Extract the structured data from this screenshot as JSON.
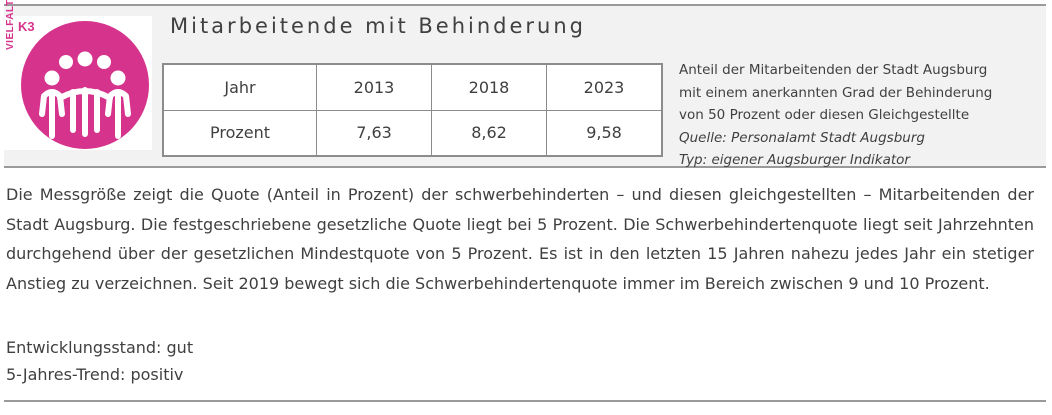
{
  "logo": {
    "side_text": "VIELFALT",
    "code": "K3",
    "accent_color": "#d6348c"
  },
  "title": "Mitarbeitende mit Behinderung",
  "table": {
    "headers": [
      "Jahr",
      "2013",
      "2018",
      "2023"
    ],
    "rows": [
      [
        "Prozent",
        "7,63",
        "8,62",
        "9,58"
      ]
    ]
  },
  "description": {
    "text_line1": "Anteil der Mitarbeitenden der Stadt Augsburg",
    "text_line2": "mit einem anerkannten Grad der Behinderung",
    "text_line3": "von 50 Prozent oder diesen Gleichgestellte",
    "source": "Quelle: Personalamt Stadt Augsburg",
    "type": "Typ: eigener Augsburger Indikator"
  },
  "body_text": "Die Messgröße zeigt die Quote (Anteil in Prozent) der schwerbehinderten – und diesen gleichgestellten – Mitarbeitenden der Stadt Augsburg. Die festgeschriebene gesetzliche Quote liegt bei 5 Prozent. Die Schwerbehindertenquote liegt seit Jahrzehnten durchgehend über der gesetzlichen Mindestquote von 5 Prozent. Es ist in den letzten 15 Jahren nahezu jedes Jahr ein stetiger Anstieg zu verzeichnen. Seit 2019 bewegt sich die Schwerbehindertenquote immer im Bereich zwischen 9 und 10 Prozent.",
  "status": {
    "development": "Entwicklungsstand: gut",
    "trend": "5-Jahres-Trend: positiv"
  }
}
